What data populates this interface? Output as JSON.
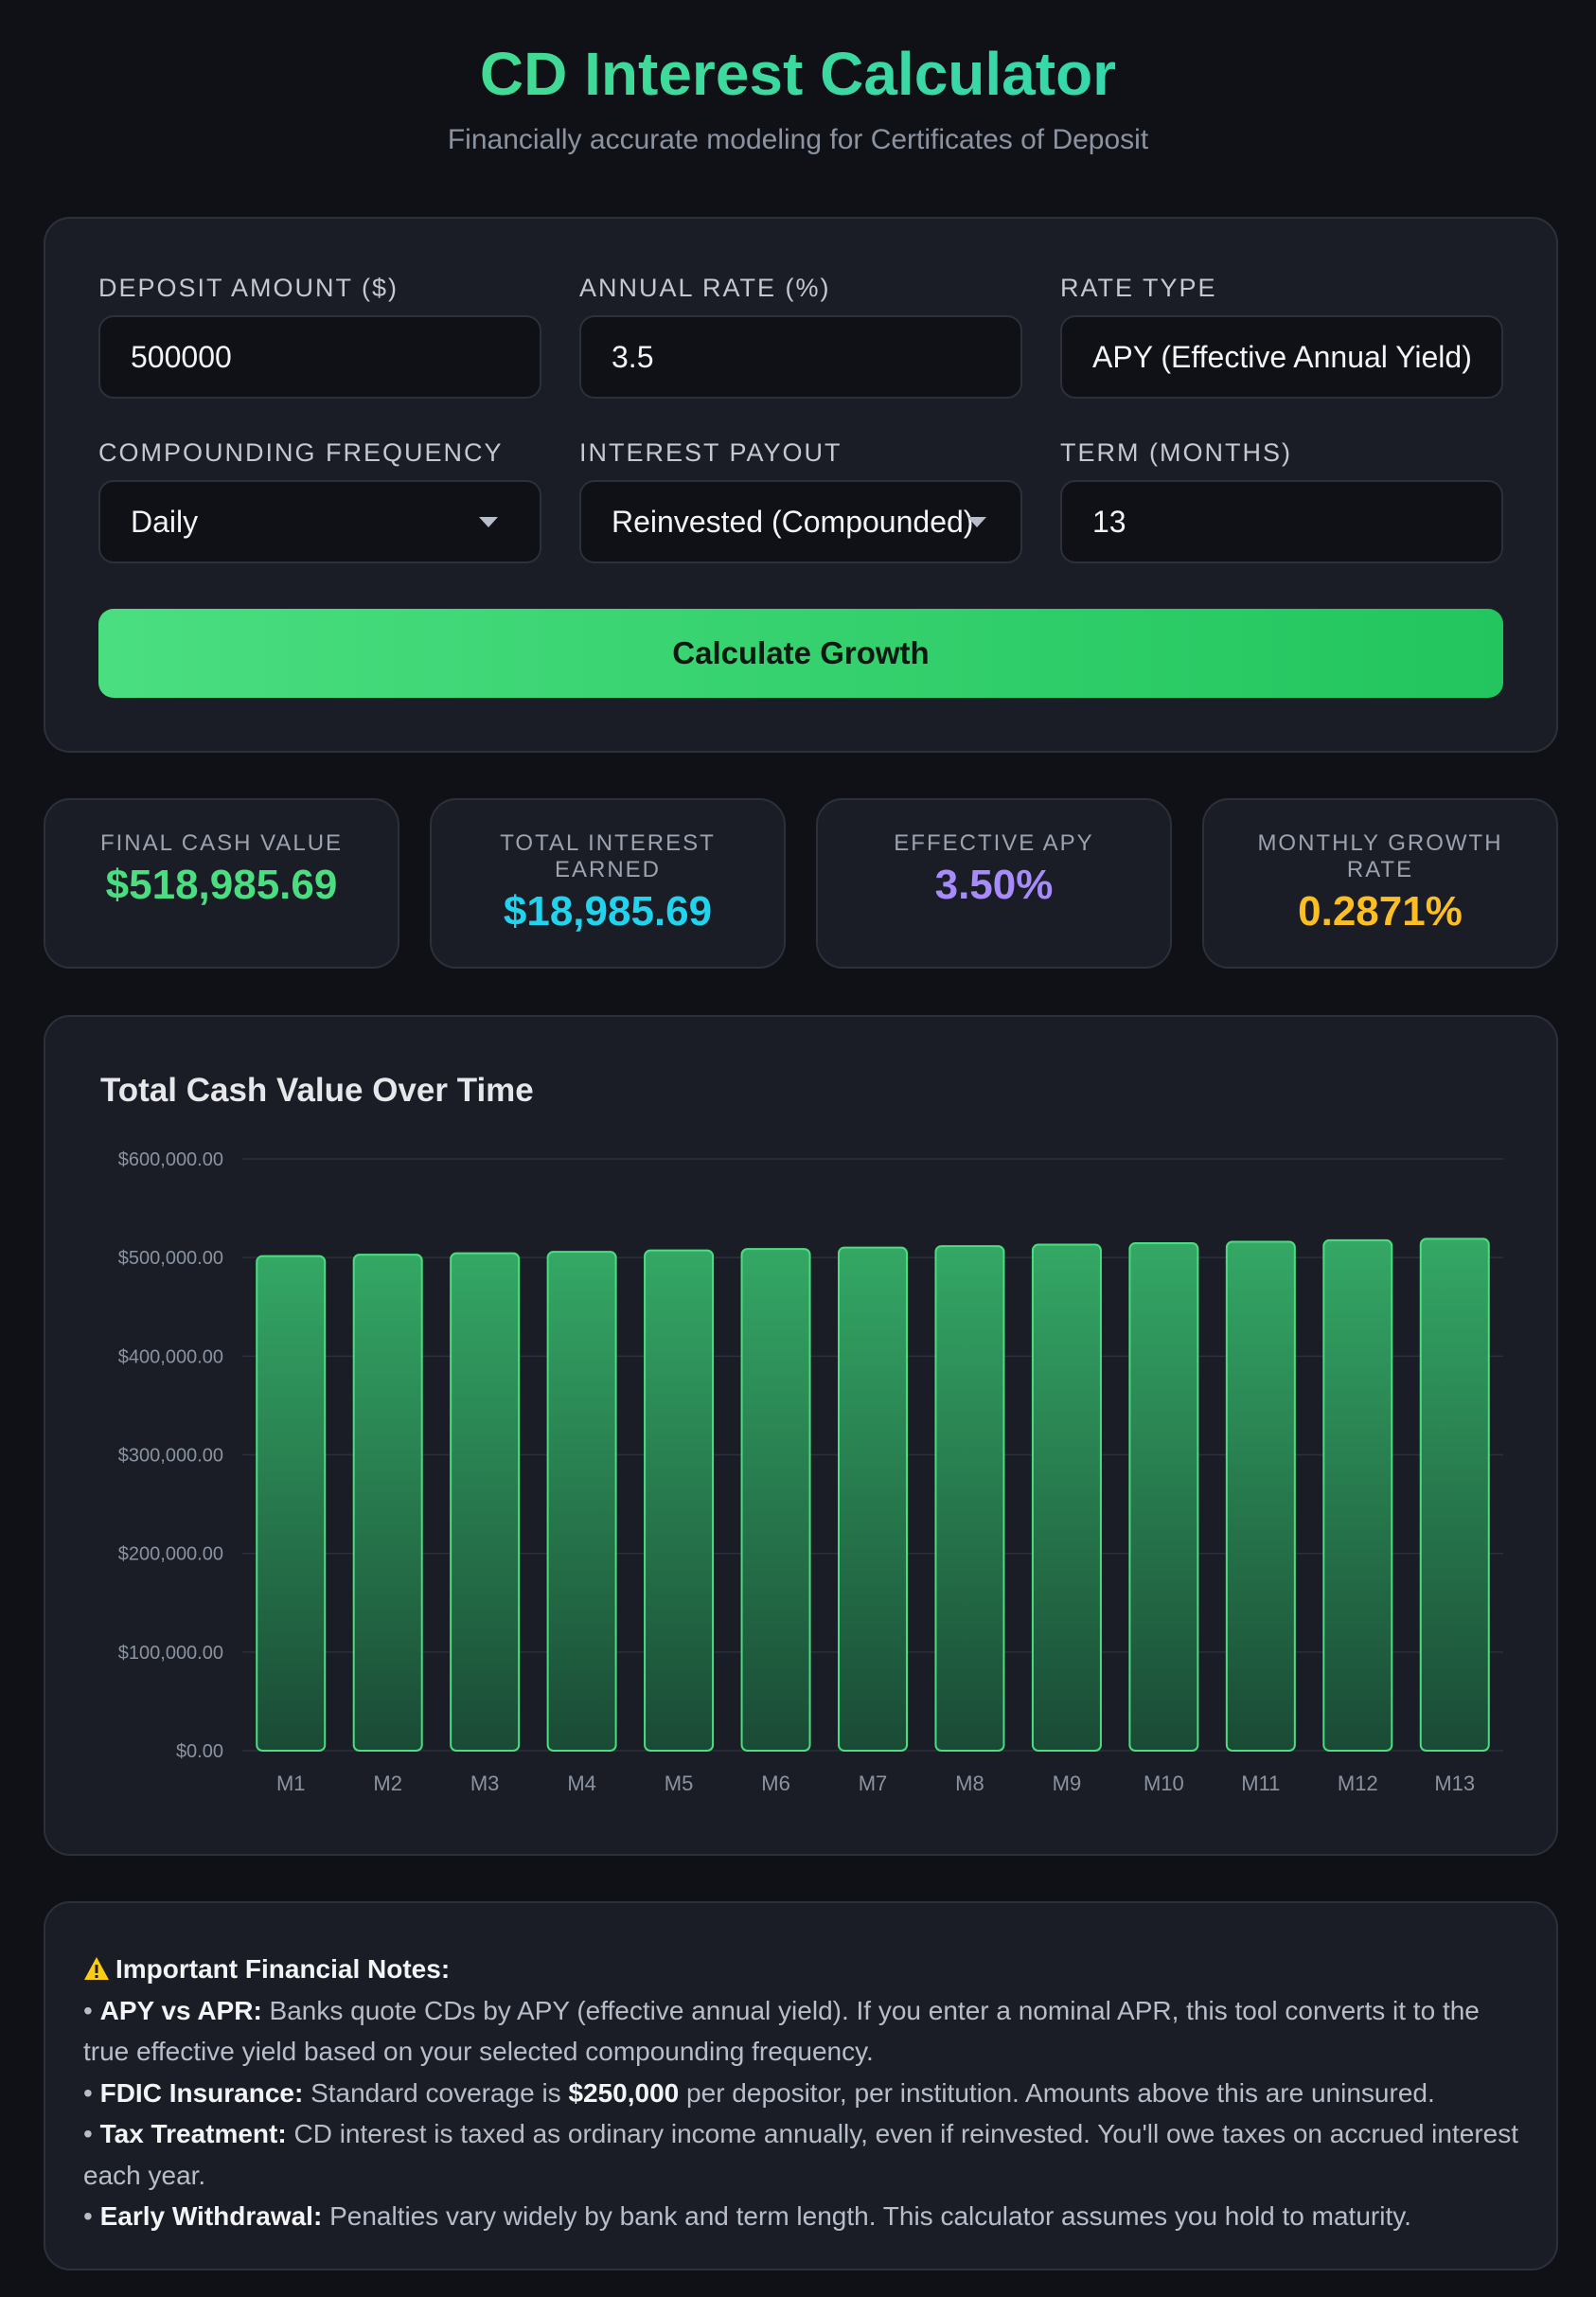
{
  "header": {
    "title": "CD Interest Calculator",
    "subtitle": "Financially accurate modeling for Certificates of Deposit"
  },
  "form": {
    "deposit": {
      "label": "Deposit Amount ($)",
      "value": "500000"
    },
    "rate": {
      "label": "Annual Rate (%)",
      "value": "3.5"
    },
    "rate_type": {
      "label": "Rate Type",
      "value": "APY (Effective Annual Yield)"
    },
    "compounding": {
      "label": "Compounding Frequency",
      "value": "Daily"
    },
    "payout": {
      "label": "Interest Payout",
      "value": "Reinvested (Compounded)"
    },
    "term": {
      "label": "Term (Months)",
      "value": "13"
    },
    "calculate_label": "Calculate Growth"
  },
  "stats": [
    {
      "label": "Final Cash Value",
      "value": "$518,985.69",
      "color": "#4ade80"
    },
    {
      "label": "Total Interest Earned",
      "value": "$18,985.69",
      "color": "#22d3ee"
    },
    {
      "label": "Effective APY",
      "value": "3.50%",
      "color": "#a78bfa"
    },
    {
      "label": "Monthly Growth Rate",
      "value": "0.2871%",
      "color": "#fbbf24"
    }
  ],
  "chart_data": {
    "type": "bar",
    "title": "Total Cash Value Over Time",
    "categories": [
      "M1",
      "M2",
      "M3",
      "M4",
      "M5",
      "M6",
      "M7",
      "M8",
      "M9",
      "M10",
      "M11",
      "M12",
      "M13"
    ],
    "values": [
      501435.48,
      502875.07,
      504318.79,
      505766.64,
      507218.66,
      508674.84,
      510135.21,
      511599.77,
      513068.54,
      514541.54,
      516018.77,
      517500.24,
      518985.69
    ],
    "y_ticks": [
      "$0.00",
      "$100,000.00",
      "$200,000.00",
      "$300,000.00",
      "$400,000.00",
      "$500,000.00",
      "$600,000.00"
    ],
    "ylim": [
      0,
      600000
    ],
    "grid": true,
    "bar_color": "#4ade80"
  },
  "notes": {
    "heading": "Important Financial Notes:",
    "items": [
      {
        "title": "APY vs APR:",
        "text": " Banks quote CDs by APY (effective annual yield). If you enter a nominal APR, this tool converts it to the true effective yield based on your selected compounding frequency."
      },
      {
        "title": "FDIC Insurance:",
        "text_before": " Standard coverage is ",
        "strong": "$250,000",
        "text_after": " per depositor, per institution. Amounts above this are uninsured."
      },
      {
        "title": "Tax Treatment:",
        "text": " CD interest is taxed as ordinary income annually, even if reinvested. You'll owe taxes on accrued interest each year."
      },
      {
        "title": "Early Withdrawal:",
        "text": " Penalties vary widely by bank and term length. This calculator assumes you hold to maturity."
      }
    ]
  },
  "icons": {
    "warning": "warning-icon",
    "select_caret": "chevron-down-icon"
  }
}
